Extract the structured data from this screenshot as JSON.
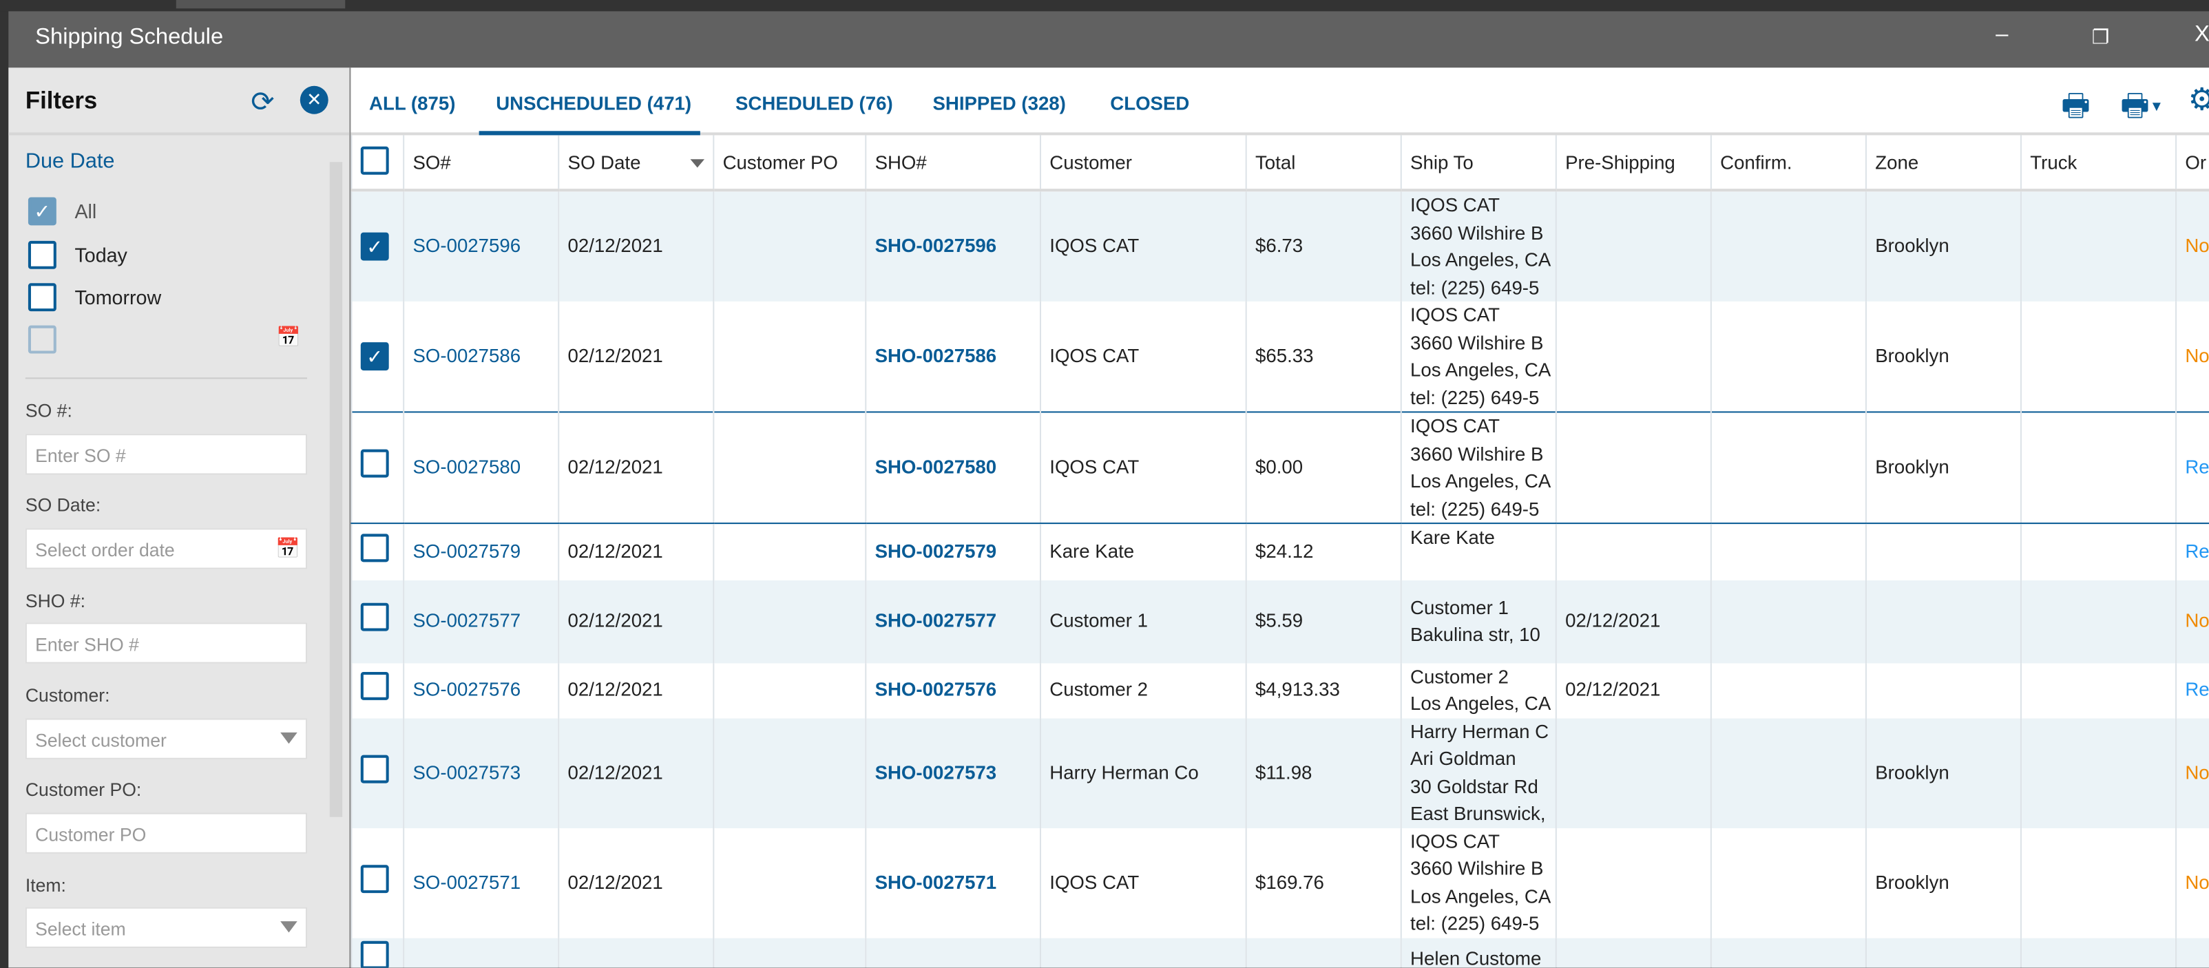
{
  "window": {
    "title": "Shipping Schedule",
    "minimize": "–",
    "restore": "❐",
    "close": "X"
  },
  "filters": {
    "title": "Filters",
    "refresh_icon": "⟳",
    "close_icon": "✕",
    "due_date": {
      "label": "Due Date",
      "options": [
        {
          "label": "All",
          "checked": true
        },
        {
          "label": "Today",
          "checked": false
        },
        {
          "label": "Tomorrow",
          "checked": false
        }
      ]
    },
    "fields": [
      {
        "label": "SO #:",
        "placeholder": "Enter SO #",
        "type": "text"
      },
      {
        "label": "SO Date:",
        "placeholder": "Select order date",
        "type": "date"
      },
      {
        "label": "SHO #:",
        "placeholder": "Enter SHO #",
        "type": "text"
      },
      {
        "label": "Customer:",
        "placeholder": "Select customer",
        "type": "select"
      },
      {
        "label": "Customer PO:",
        "placeholder": "Customer PO",
        "type": "text"
      },
      {
        "label": "Item:",
        "placeholder": "Select item",
        "type": "select"
      }
    ]
  },
  "tabs": [
    {
      "label": "ALL (875)",
      "active": false
    },
    {
      "label": "UNSCHEDULED (471)",
      "active": true
    },
    {
      "label": "SCHEDULED (76)",
      "active": false
    },
    {
      "label": "SHIPPED (328)",
      "active": false
    },
    {
      "label": "CLOSED",
      "active": false
    }
  ],
  "columns": [
    "SO#",
    "SO Date",
    "Customer PO",
    "SHO#",
    "Customer",
    "Total",
    "Ship To",
    "Pre-Shipping",
    "Confirm.",
    "Zone",
    "Truck",
    "Or"
  ],
  "rows": [
    {
      "checked": true,
      "so": "SO-0027596",
      "so_date": "02/12/2021",
      "po": "",
      "sho": "SHO-0027596",
      "customer": "IQOS CAT",
      "total": "$6.73",
      "ship_to": [
        "IQOS CAT",
        "3660 Wilshire B",
        "Los Angeles, CA",
        "tel: (225) 649-5"
      ],
      "pre": "",
      "confirm": "",
      "zone": "Brooklyn",
      "truck": "",
      "status": "No",
      "status_type": "no"
    },
    {
      "checked": true,
      "so": "SO-0027586",
      "so_date": "02/12/2021",
      "po": "",
      "sho": "SHO-0027586",
      "customer": "IQOS CAT",
      "total": "$65.33",
      "ship_to": [
        "IQOS CAT",
        "3660 Wilshire B",
        "Los Angeles, CA",
        "tel: (225) 649-5"
      ],
      "pre": "",
      "confirm": "",
      "zone": "Brooklyn",
      "truck": "",
      "status": "No",
      "status_type": "no"
    },
    {
      "checked": false,
      "so": "SO-0027580",
      "so_date": "02/12/2021",
      "po": "",
      "sho": "SHO-0027580",
      "customer": "IQOS CAT",
      "total": "$0.00",
      "ship_to": [
        "IQOS CAT",
        "3660 Wilshire B",
        "Los Angeles, CA",
        "tel: (225) 649-5"
      ],
      "pre": "",
      "confirm": "",
      "zone": "Brooklyn",
      "truck": "",
      "status": "Re",
      "status_type": "re"
    },
    {
      "checked": false,
      "so": "SO-0027579",
      "so_date": "02/12/2021",
      "po": "",
      "sho": "SHO-0027579",
      "customer": "Kare Kate",
      "total": "$24.12",
      "ship_to": [
        "Kare Kate"
      ],
      "pre": "",
      "confirm": "",
      "zone": "",
      "truck": "",
      "status": "Re",
      "status_type": "re"
    },
    {
      "checked": false,
      "so": "SO-0027577",
      "so_date": "02/12/2021",
      "po": "",
      "sho": "SHO-0027577",
      "customer": "Customer 1",
      "total": "$5.59",
      "ship_to": [
        "Customer 1",
        "Bakulina str, 10"
      ],
      "pre": "02/12/2021",
      "confirm": "",
      "zone": "",
      "truck": "",
      "status": "No",
      "status_type": "no"
    },
    {
      "checked": false,
      "so": "SO-0027576",
      "so_date": "02/12/2021",
      "po": "",
      "sho": "SHO-0027576",
      "customer": "Customer 2",
      "total": "$4,913.33",
      "ship_to": [
        "Customer 2",
        "Los Angeles, CA"
      ],
      "pre": "02/12/2021",
      "confirm": "",
      "zone": "",
      "truck": "",
      "status": "Re",
      "status_type": "re"
    },
    {
      "checked": false,
      "so": "SO-0027573",
      "so_date": "02/12/2021",
      "po": "",
      "sho": "SHO-0027573",
      "customer": "Harry Herman Co",
      "total": "$11.98",
      "ship_to": [
        "Harry Herman C",
        "Ari Goldman",
        "30 Goldstar Rd",
        "East Brunswick,"
      ],
      "pre": "",
      "confirm": "",
      "zone": "Brooklyn",
      "truck": "",
      "status": "No",
      "status_type": "no"
    },
    {
      "checked": false,
      "so": "SO-0027571",
      "so_date": "02/12/2021",
      "po": "",
      "sho": "SHO-0027571",
      "customer": "IQOS CAT",
      "total": "$169.76",
      "ship_to": [
        "IQOS CAT",
        "3660 Wilshire B",
        "Los Angeles, CA",
        "tel: (225) 649-5"
      ],
      "pre": "",
      "confirm": "",
      "zone": "Brooklyn",
      "truck": "",
      "status": "No",
      "status_type": "no"
    },
    {
      "checked": false,
      "so": "",
      "so_date": "",
      "po": "",
      "sho": "",
      "customer": "",
      "total": "",
      "ship_to": [
        "Helen Custome"
      ],
      "pre": "",
      "confirm": "",
      "zone": "",
      "truck": "",
      "status": "",
      "status_type": ""
    }
  ],
  "colors": {
    "accent": "#0a5c96",
    "status_no": "#f08a00",
    "status_re": "#2196f3",
    "row_alt": "#ebf3f7",
    "titlebar": "#616161"
  }
}
